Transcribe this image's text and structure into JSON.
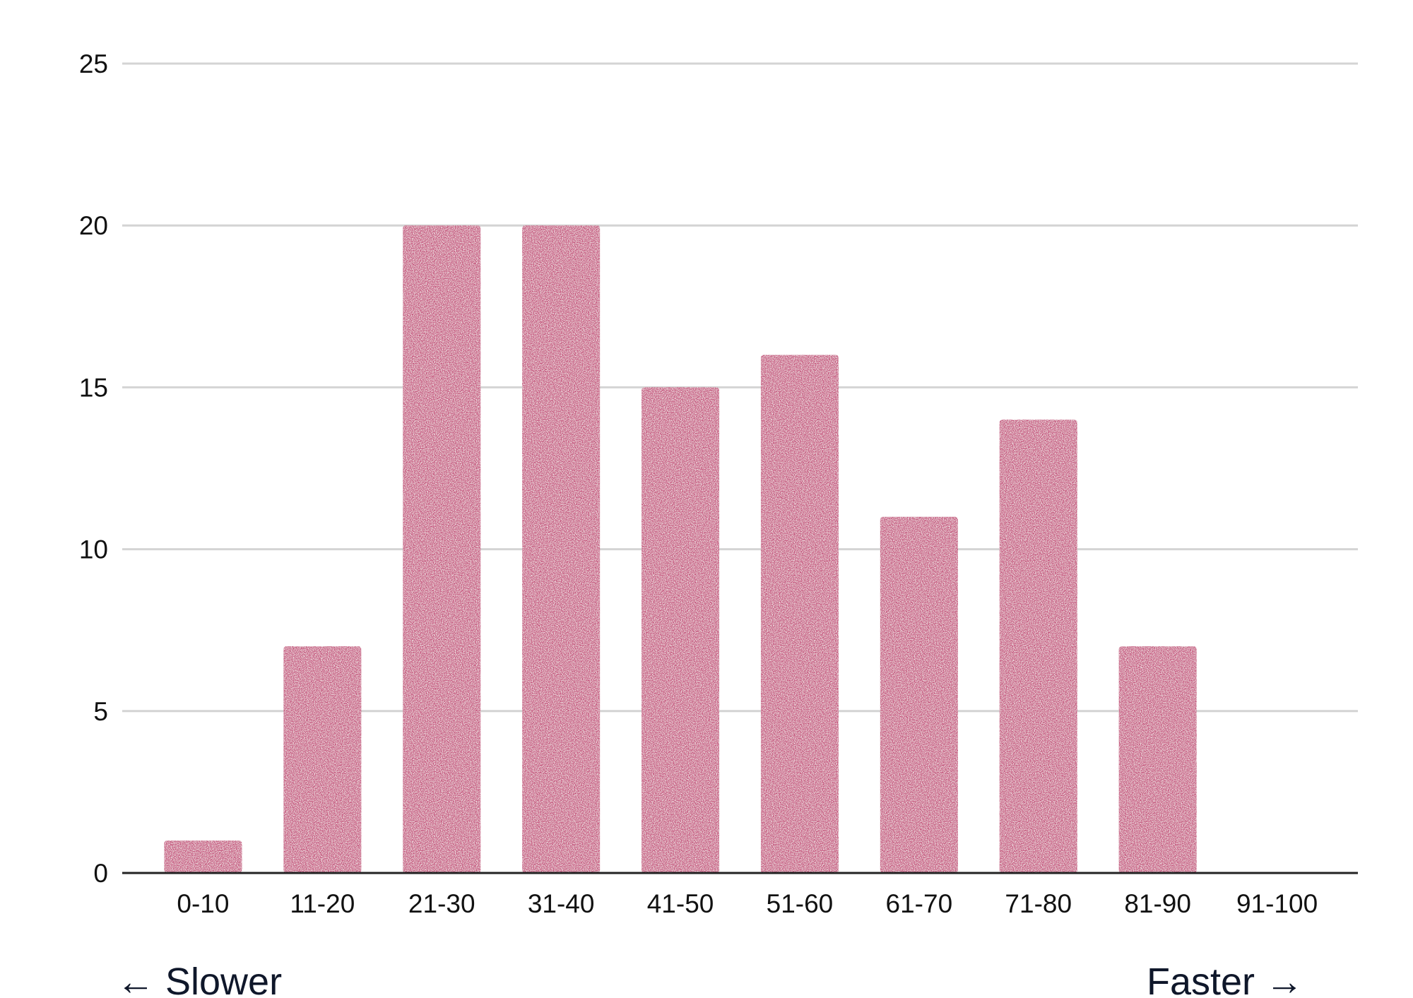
{
  "chart_data": {
    "type": "bar",
    "categories": [
      "0-10",
      "11-20",
      "21-30",
      "31-40",
      "41-50",
      "51-60",
      "61-70",
      "71-80",
      "81-90",
      "91-100"
    ],
    "values": [
      1,
      7,
      20,
      20,
      15,
      16,
      11,
      14,
      7,
      0
    ],
    "yticks": [
      "0",
      "5",
      "10",
      "15",
      "20",
      "25"
    ],
    "ylim": [
      0,
      25
    ],
    "grid": true,
    "bar_color": "#c4507a",
    "grid_color": "#d4d4d4",
    "axis_color": "#222222",
    "annotations": {
      "left": "← Slower",
      "right": "Faster →"
    }
  }
}
